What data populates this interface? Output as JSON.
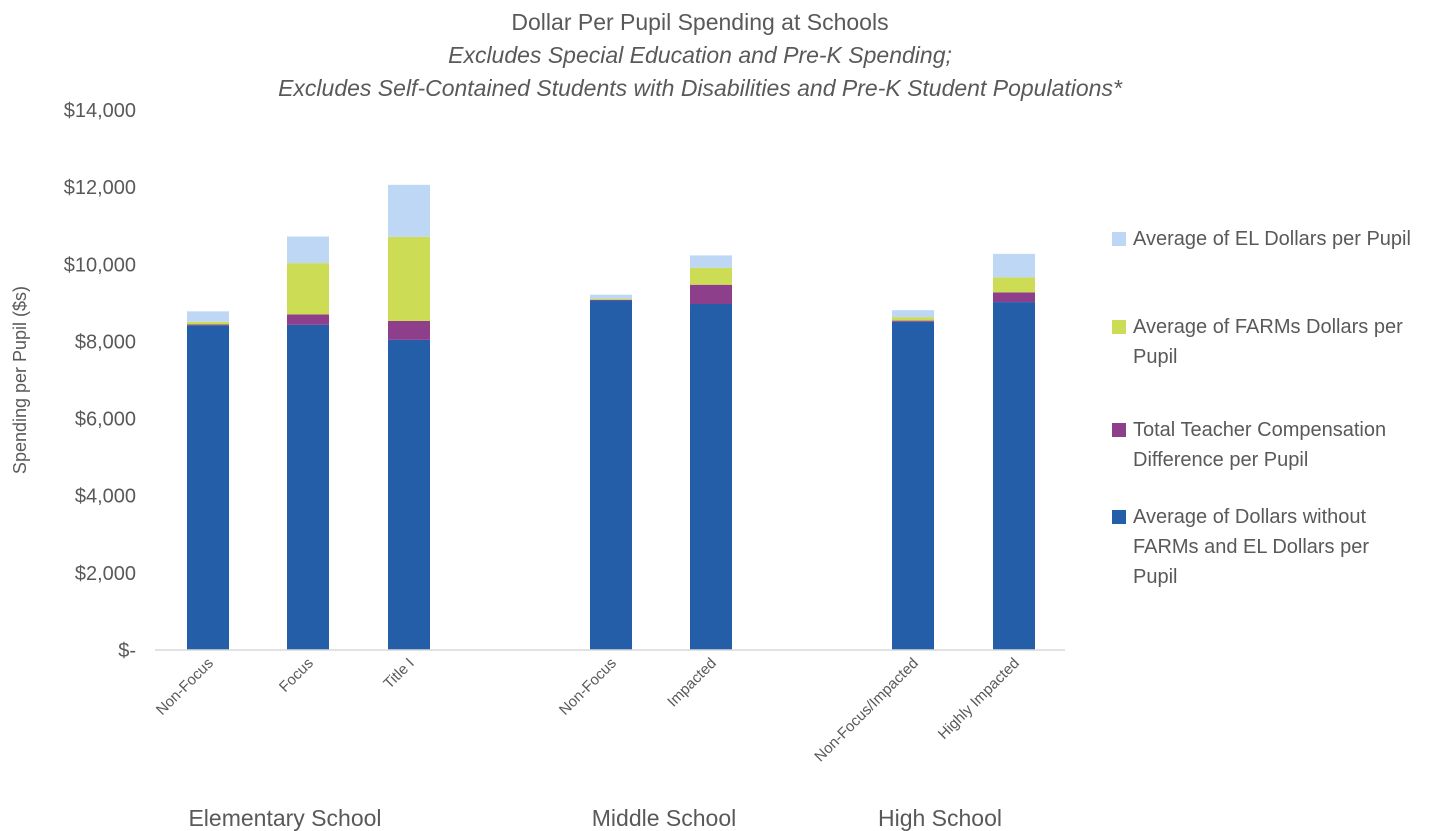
{
  "chart_data": {
    "type": "bar",
    "stacked": true,
    "title": "Dollar Per Pupil Spending at Schools",
    "subtitle_lines": [
      "Excludes Special Education and Pre-K Spending;",
      "Excludes Self-Contained Students with Disabilities and Pre-K Student Populations*"
    ],
    "ylabel": "Spending per Pupil ($s)",
    "ylim": [
      0,
      14000
    ],
    "yticks": [
      0,
      2000,
      4000,
      6000,
      8000,
      10000,
      12000,
      14000
    ],
    "ytick_labels": [
      "$-",
      "$2,000",
      "$4,000",
      "$6,000",
      "$8,000",
      "$10,000",
      "$12,000",
      "$14,000"
    ],
    "grid": false,
    "legend_position": "right",
    "groups": [
      {
        "label": "Elementary School",
        "categories": [
          "Non-Focus",
          "Focus",
          "Title I"
        ]
      },
      {
        "label": "Middle School",
        "categories": [
          "Non-Focus",
          "Impacted"
        ]
      },
      {
        "label": "High School",
        "categories": [
          "Non-Focus/Impacted",
          "Highly Impacted"
        ]
      }
    ],
    "series": [
      {
        "name": "Average of Dollars without FARMs and EL Dollars per Pupil",
        "legend_lines": [
          "Average of Dollars without",
          "FARMs and EL Dollars per",
          "Pupil"
        ],
        "color": "#245DA8",
        "values": [
          8420,
          8430,
          8040,
          9060,
          8970,
          8510,
          9020
        ]
      },
      {
        "name": "Total Teacher Compensation Difference per Pupil",
        "legend_lines": [
          "Total Teacher Compensation",
          "Difference per Pupil"
        ],
        "color": "#8E3F8C",
        "values": [
          20,
          270,
          490,
          20,
          500,
          30,
          250
        ]
      },
      {
        "name": "Average of FARMs Dollars per Pupil",
        "legend_lines": [
          "Average of FARMs Dollars per",
          "Pupil"
        ],
        "color": "#CCDD55",
        "values": [
          70,
          1330,
          2180,
          30,
          440,
          90,
          390
        ]
      },
      {
        "name": "Average of EL Dollars per Pupil",
        "legend_lines": [
          "Average of EL Dollars per Pupil"
        ],
        "color": "#BDD7F5",
        "values": [
          270,
          690,
          1350,
          100,
          320,
          180,
          610
        ]
      }
    ]
  }
}
